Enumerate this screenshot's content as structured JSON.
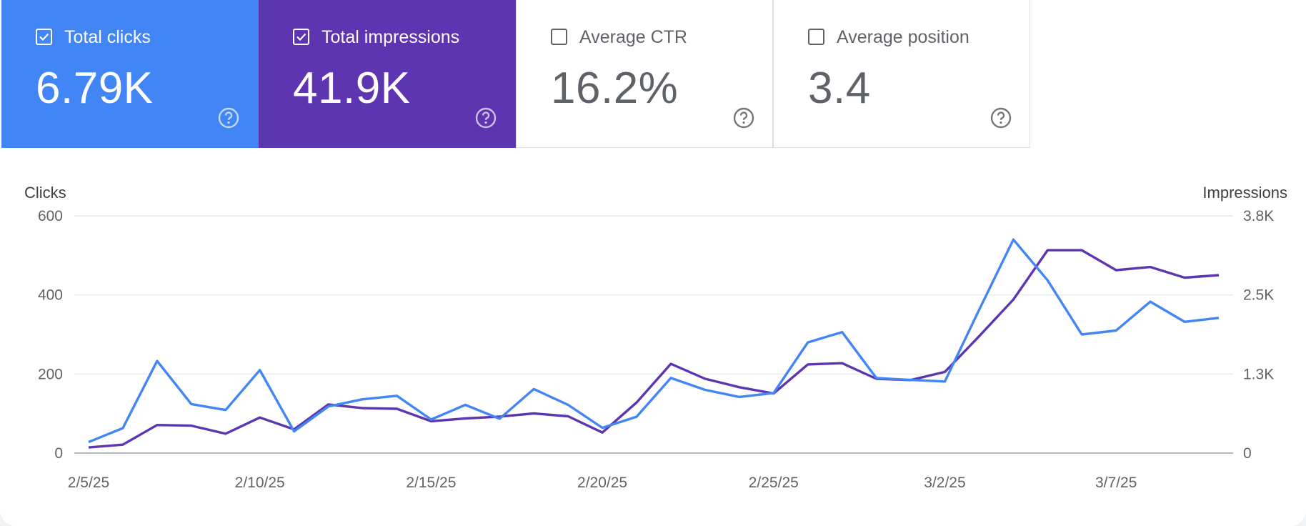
{
  "metrics": [
    {
      "label": "Total clicks",
      "value": "6.79K",
      "checked": true,
      "color": "#4285f4"
    },
    {
      "label": "Total impressions",
      "value": "41.9K",
      "checked": true,
      "color": "#5e35b1"
    },
    {
      "label": "Average CTR",
      "value": "16.2%",
      "checked": false,
      "color": "#ffffff"
    },
    {
      "label": "Average position",
      "value": "3.4",
      "checked": false,
      "color": "#ffffff"
    }
  ],
  "chart_data": {
    "type": "line",
    "title": "",
    "x": [
      "2/5/25",
      "2/6/25",
      "2/7/25",
      "2/8/25",
      "2/9/25",
      "2/10/25",
      "2/11/25",
      "2/12/25",
      "2/13/25",
      "2/14/25",
      "2/15/25",
      "2/16/25",
      "2/17/25",
      "2/18/25",
      "2/19/25",
      "2/20/25",
      "2/21/25",
      "2/22/25",
      "2/23/25",
      "2/24/25",
      "2/25/25",
      "2/26/25",
      "2/27/25",
      "2/28/25",
      "3/1/25",
      "3/2/25",
      "3/3/25",
      "3/4/25",
      "3/5/25",
      "3/6/25",
      "3/7/25",
      "3/8/25",
      "3/9/25",
      "3/10/25"
    ],
    "x_tick_labels": [
      "2/5/25",
      "2/10/25",
      "2/15/25",
      "2/20/25",
      "2/25/25",
      "3/2/25",
      "3/7/25"
    ],
    "y_left": {
      "label": "Clicks",
      "ticks": [
        "0",
        "200",
        "400",
        "600"
      ],
      "ylim": [
        0,
        600
      ]
    },
    "y_right": {
      "label": "Impressions",
      "ticks": [
        "0",
        "1.3K",
        "2.5K",
        "3.8K"
      ],
      "ylim": [
        0,
        3800
      ]
    },
    "grid": true,
    "series": [
      {
        "name": "Clicks",
        "axis": "left",
        "color": "#4285f4",
        "values": [
          28,
          63,
          233,
          124,
          109,
          210,
          55,
          118,
          136,
          145,
          85,
          122,
          87,
          162,
          122,
          64,
          92,
          190,
          160,
          142,
          152,
          280,
          306,
          190,
          185,
          181,
          362,
          540,
          437,
          300,
          310,
          383,
          332,
          342
        ]
      },
      {
        "name": "Impressions",
        "axis": "right",
        "color": "#5e35b1",
        "values": [
          90,
          135,
          450,
          440,
          310,
          570,
          380,
          780,
          720,
          710,
          510,
          555,
          585,
          635,
          590,
          330,
          810,
          1430,
          1190,
          1055,
          955,
          1420,
          1440,
          1190,
          1170,
          1300,
          1870,
          2460,
          3250,
          3250,
          2930,
          2980,
          2810,
          2850
        ]
      }
    ]
  }
}
